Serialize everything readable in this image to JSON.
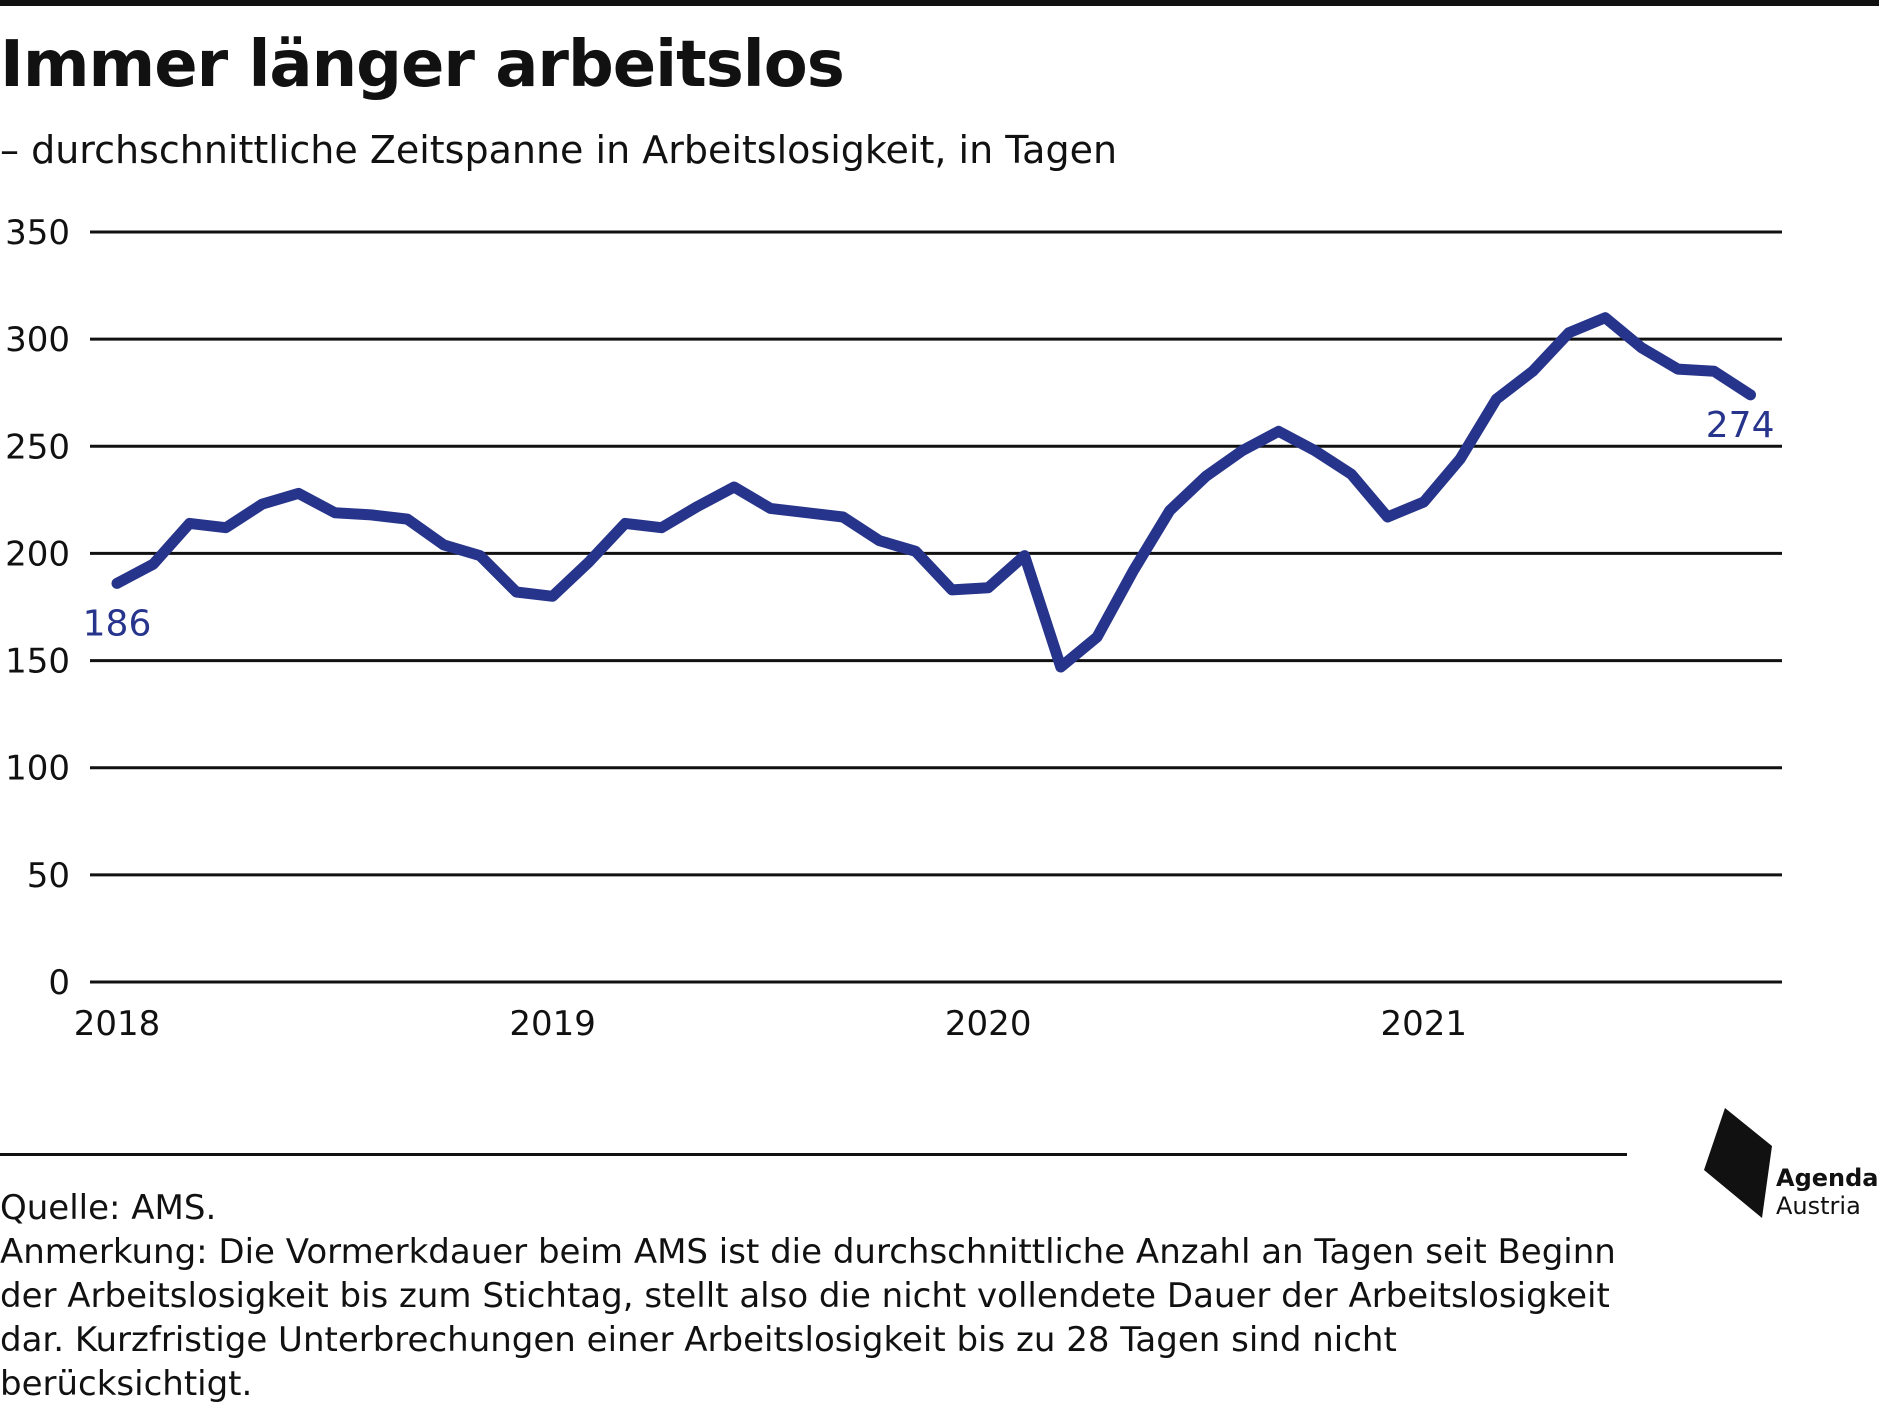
{
  "header": {
    "title": "Immer länger arbeitslos",
    "subtitle": "– durchschnittliche Zeitspanne in Arbeitslosigkeit, in Tagen"
  },
  "footer": {
    "source": "Quelle: AMS.",
    "note": "Anmerkung: Die Vormerkdauer beim AMS ist die durchschnittliche Anzahl an Tagen seit Beginn der Arbeitslosigkeit bis zum Stichtag, stellt also die nicht vollendete Dauer der Arbeitslosigkeit dar. Kurzfristige Unterbrechungen einer Arbeitslosigkeit bis zu 28 Tagen sind nicht berücksichtigt."
  },
  "logo": {
    "line1": "Agenda",
    "line2": "Austria"
  },
  "colors": {
    "series": "#27348b",
    "grid": "#111111",
    "text": "#111111"
  },
  "chart_data": {
    "type": "line",
    "title": "Immer länger arbeitslos",
    "subtitle": "– durchschnittliche Zeitspanne in Arbeitslosigkeit, in Tagen",
    "xlabel": "",
    "ylabel": "",
    "ylim": [
      0,
      350
    ],
    "yticks": [
      0,
      50,
      100,
      150,
      200,
      250,
      300,
      350
    ],
    "xtick_labels": [
      "2018",
      "2019",
      "2020",
      "2021"
    ],
    "grid": "horizontal",
    "x": [
      "2018-01",
      "2018-02",
      "2018-03",
      "2018-04",
      "2018-05",
      "2018-06",
      "2018-07",
      "2018-08",
      "2018-09",
      "2018-10",
      "2018-11",
      "2018-12",
      "2019-01",
      "2019-02",
      "2019-03",
      "2019-04",
      "2019-05",
      "2019-06",
      "2019-07",
      "2019-08",
      "2019-09",
      "2019-10",
      "2019-11",
      "2019-12",
      "2020-01",
      "2020-02",
      "2020-03",
      "2020-04",
      "2020-05",
      "2020-06",
      "2020-07",
      "2020-08",
      "2020-09",
      "2020-10",
      "2020-11",
      "2020-12",
      "2021-01",
      "2021-02",
      "2021-03",
      "2021-04",
      "2021-05",
      "2021-06",
      "2021-07",
      "2021-08",
      "2021-09",
      "2021-10"
    ],
    "series": [
      {
        "values": [
          186,
          195,
          214,
          212,
          223,
          228,
          219,
          218,
          216,
          204,
          199,
          182,
          180,
          196,
          214,
          212,
          222,
          231,
          221,
          219,
          217,
          206,
          201,
          183,
          184,
          199,
          147,
          161,
          192,
          220,
          236,
          248,
          257,
          248,
          237,
          217,
          224,
          244,
          272,
          285,
          303,
          310,
          296,
          286,
          285,
          274
        ]
      }
    ],
    "annotations": [
      {
        "text": "186",
        "x": "2018-01",
        "y": 186
      },
      {
        "text": "274",
        "x": "2021-10",
        "y": 274
      }
    ]
  }
}
